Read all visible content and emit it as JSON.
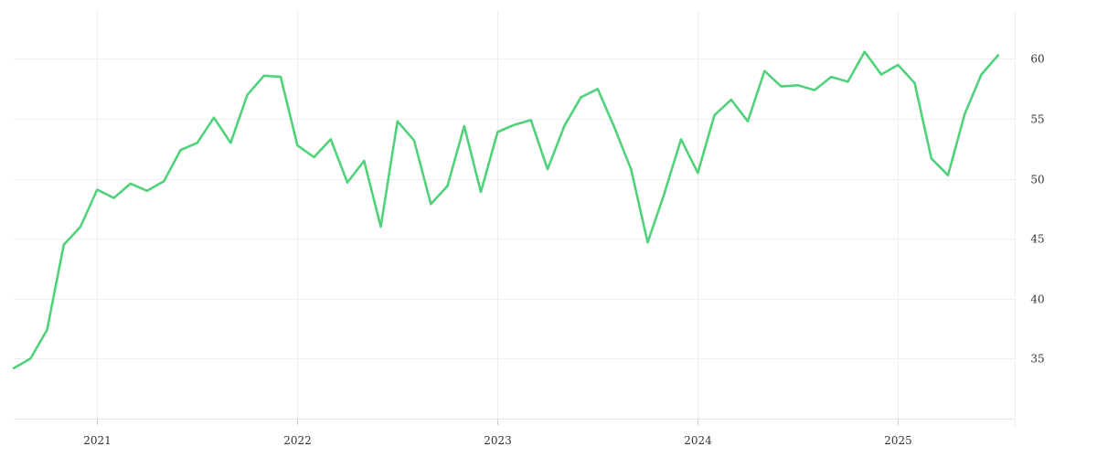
{
  "chart_data": {
    "type": "line",
    "title": "",
    "xlabel": "",
    "ylabel": "",
    "ylim": [
      30,
      64
    ],
    "xlim": [
      "2020-08",
      "2025-08"
    ],
    "grid": true,
    "y_axis_position": "right",
    "colors": {
      "line": "#50d27a",
      "grid": "#eeeeee",
      "text": "#333333"
    },
    "x_ticks": [
      {
        "date": "2021-01",
        "label": "2021"
      },
      {
        "date": "2022-01",
        "label": "2022"
      },
      {
        "date": "2023-01",
        "label": "2023"
      },
      {
        "date": "2024-01",
        "label": "2024"
      },
      {
        "date": "2025-01",
        "label": "2025"
      }
    ],
    "y_ticks": [
      {
        "value": 35,
        "label": "35"
      },
      {
        "value": 40,
        "label": "40"
      },
      {
        "value": 45,
        "label": "45"
      },
      {
        "value": 50,
        "label": "50"
      },
      {
        "value": 55,
        "label": "55"
      },
      {
        "value": 60,
        "label": "60"
      }
    ],
    "series": [
      {
        "x": [
          "2020-08",
          "2020-09",
          "2020-10",
          "2020-11",
          "2020-12",
          "2021-01",
          "2021-02",
          "2021-03",
          "2021-04",
          "2021-05",
          "2021-06",
          "2021-07",
          "2021-08",
          "2021-09",
          "2021-10",
          "2021-11",
          "2021-12",
          "2022-01",
          "2022-02",
          "2022-03",
          "2022-04",
          "2022-05",
          "2022-06",
          "2022-07",
          "2022-08",
          "2022-09",
          "2022-10",
          "2022-11",
          "2022-12",
          "2023-01",
          "2023-02",
          "2023-03",
          "2023-04",
          "2023-05",
          "2023-06",
          "2023-07",
          "2023-08",
          "2023-09",
          "2023-10",
          "2023-11",
          "2023-12",
          "2024-01",
          "2024-02",
          "2024-03",
          "2024-04",
          "2024-05",
          "2024-06",
          "2024-07",
          "2024-08",
          "2024-09",
          "2024-10",
          "2024-11",
          "2024-12",
          "2025-01",
          "2025-02",
          "2025-03",
          "2025-04",
          "2025-05",
          "2025-06",
          "2025-07"
        ],
        "values": [
          34.2,
          35.0,
          37.4,
          44.5,
          46.0,
          49.1,
          48.4,
          49.6,
          49.0,
          49.8,
          52.4,
          53.0,
          55.1,
          53.0,
          57.0,
          58.6,
          58.5,
          52.8,
          51.8,
          53.3,
          49.7,
          51.5,
          46.0,
          54.8,
          53.2,
          47.9,
          49.4,
          54.4,
          48.9,
          53.9,
          54.5,
          54.9,
          50.8,
          54.4,
          56.8,
          57.5,
          54.3,
          50.8,
          44.7,
          48.8,
          53.3,
          50.5,
          55.3,
          56.6,
          54.8,
          59.0,
          57.7,
          57.8,
          57.4,
          58.5,
          58.1,
          60.6,
          58.7,
          59.5,
          58.0,
          51.7,
          50.3,
          55.4,
          58.7,
          60.3
        ]
      }
    ]
  }
}
